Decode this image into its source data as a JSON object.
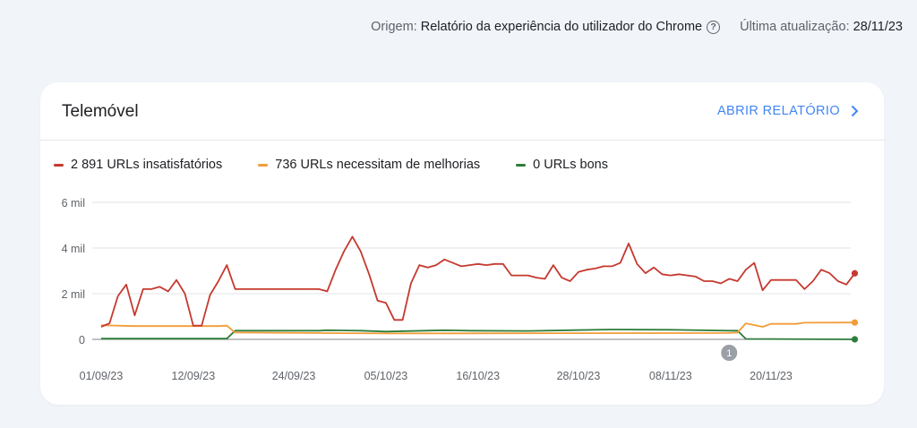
{
  "header": {
    "origin_label": "Origem:",
    "origin_value": "Relatório da experiência do utilizador do Chrome",
    "updated_label": "Última atualização:",
    "updated_value": "28/11/23"
  },
  "card": {
    "title": "Telemóvel",
    "open_report": "ABRIR RELATÓRIO"
  },
  "colors": {
    "poor": "#c5392f",
    "needs": "#f29c38",
    "good": "#2d7d3a"
  },
  "chart_data": {
    "type": "line",
    "legend_placement": "top-left",
    "grid": true,
    "ylim": [
      0,
      6000
    ],
    "yticks": [
      {
        "value": 0,
        "label": "0"
      },
      {
        "value": 2000,
        "label": "2 mil"
      },
      {
        "value": 4000,
        "label": "4 mil"
      },
      {
        "value": 6000,
        "label": "6 mil"
      }
    ],
    "xticks": [
      "01/09/23",
      "12/09/23",
      "24/09/23",
      "05/10/23",
      "16/10/23",
      "28/10/23",
      "08/11/23",
      "20/11/23"
    ],
    "annotation": {
      "date": "15/11/23",
      "label": "1"
    },
    "series": [
      {
        "name": "2 891 URLs insatisfatórios",
        "color_key": "poor",
        "points": [
          [
            "01/09/23",
            550
          ],
          [
            "02/09/23",
            700
          ],
          [
            "03/09/23",
            1900
          ],
          [
            "04/09/23",
            2400
          ],
          [
            "05/09/23",
            1050
          ],
          [
            "06/09/23",
            2200
          ],
          [
            "07/09/23",
            2200
          ],
          [
            "08/09/23",
            2300
          ],
          [
            "09/09/23",
            2100
          ],
          [
            "10/09/23",
            2600
          ],
          [
            "11/09/23",
            2000
          ],
          [
            "12/09/23",
            600
          ],
          [
            "13/09/23",
            600
          ],
          [
            "14/09/23",
            1950
          ],
          [
            "15/09/23",
            2550
          ],
          [
            "16/09/23",
            3250
          ],
          [
            "17/09/23",
            2200
          ],
          [
            "18/09/23",
            2200
          ],
          [
            "21/09/23",
            2200
          ],
          [
            "24/09/23",
            2200
          ],
          [
            "27/09/23",
            2200
          ],
          [
            "28/09/23",
            2100
          ],
          [
            "29/09/23",
            3050
          ],
          [
            "30/09/23",
            3850
          ],
          [
            "01/10/23",
            4500
          ],
          [
            "02/10/23",
            3850
          ],
          [
            "03/10/23",
            2850
          ],
          [
            "04/10/23",
            1700
          ],
          [
            "05/10/23",
            1600
          ],
          [
            "06/10/23",
            850
          ],
          [
            "07/10/23",
            850
          ],
          [
            "08/10/23",
            2450
          ],
          [
            "09/10/23",
            3250
          ],
          [
            "10/10/23",
            3150
          ],
          [
            "11/10/23",
            3250
          ],
          [
            "12/10/23",
            3500
          ],
          [
            "13/10/23",
            3350
          ],
          [
            "14/10/23",
            3200
          ],
          [
            "15/10/23",
            3250
          ],
          [
            "16/10/23",
            3300
          ],
          [
            "17/10/23",
            3250
          ],
          [
            "18/10/23",
            3300
          ],
          [
            "19/10/23",
            3300
          ],
          [
            "20/10/23",
            2800
          ],
          [
            "21/10/23",
            2800
          ],
          [
            "22/10/23",
            2800
          ],
          [
            "23/10/23",
            2700
          ],
          [
            "24/10/23",
            2650
          ],
          [
            "25/10/23",
            3250
          ],
          [
            "26/10/23",
            2700
          ],
          [
            "27/10/23",
            2550
          ],
          [
            "28/10/23",
            2950
          ],
          [
            "29/10/23",
            3050
          ],
          [
            "30/10/23",
            3100
          ],
          [
            "31/10/23",
            3200
          ],
          [
            "01/11/23",
            3200
          ],
          [
            "02/11/23",
            3350
          ],
          [
            "03/11/23",
            4200
          ],
          [
            "04/11/23",
            3300
          ],
          [
            "05/11/23",
            2900
          ],
          [
            "06/11/23",
            3150
          ],
          [
            "07/11/23",
            2850
          ],
          [
            "08/11/23",
            2800
          ],
          [
            "09/11/23",
            2850
          ],
          [
            "10/11/23",
            2800
          ],
          [
            "11/11/23",
            2750
          ],
          [
            "12/11/23",
            2550
          ],
          [
            "13/11/23",
            2550
          ],
          [
            "14/11/23",
            2450
          ],
          [
            "15/11/23",
            2650
          ],
          [
            "16/11/23",
            2550
          ],
          [
            "17/11/23",
            3050
          ],
          [
            "18/11/23",
            3350
          ],
          [
            "19/11/23",
            2150
          ],
          [
            "20/11/23",
            2600
          ],
          [
            "21/11/23",
            2600
          ],
          [
            "22/11/23",
            2600
          ],
          [
            "23/11/23",
            2600
          ],
          [
            "24/11/23",
            2200
          ],
          [
            "25/11/23",
            2550
          ],
          [
            "26/11/23",
            3050
          ],
          [
            "27/11/23",
            2900
          ],
          [
            "28/11/23",
            2550
          ],
          [
            "29/11/23",
            2400
          ],
          [
            "30/11/23",
            2891
          ]
        ]
      },
      {
        "name": "736 URLs necessitam de melhorias",
        "color_key": "needs",
        "points": [
          [
            "01/09/23",
            620
          ],
          [
            "05/09/23",
            580
          ],
          [
            "15/09/23",
            580
          ],
          [
            "16/09/23",
            600
          ],
          [
            "17/09/23",
            300
          ],
          [
            "05/10/23",
            260
          ],
          [
            "15/11/23",
            280
          ],
          [
            "16/11/23",
            300
          ],
          [
            "17/11/23",
            700
          ],
          [
            "19/11/23",
            550
          ],
          [
            "20/11/23",
            680
          ],
          [
            "23/11/23",
            680
          ],
          [
            "24/11/23",
            730
          ],
          [
            "30/11/23",
            736
          ]
        ]
      },
      {
        "name": "0 URLs bons",
        "color_key": "good",
        "points": [
          [
            "01/09/23",
            30
          ],
          [
            "15/09/23",
            30
          ],
          [
            "16/09/23",
            30
          ],
          [
            "17/09/23",
            380
          ],
          [
            "27/09/23",
            380
          ],
          [
            "28/09/23",
            400
          ],
          [
            "02/10/23",
            380
          ],
          [
            "05/10/23",
            340
          ],
          [
            "12/10/23",
            400
          ],
          [
            "15/10/23",
            380
          ],
          [
            "22/10/23",
            370
          ],
          [
            "01/11/23",
            430
          ],
          [
            "08/11/23",
            420
          ],
          [
            "15/11/23",
            380
          ],
          [
            "16/11/23",
            380
          ],
          [
            "17/11/23",
            20
          ],
          [
            "30/11/23",
            0
          ]
        ]
      }
    ]
  }
}
